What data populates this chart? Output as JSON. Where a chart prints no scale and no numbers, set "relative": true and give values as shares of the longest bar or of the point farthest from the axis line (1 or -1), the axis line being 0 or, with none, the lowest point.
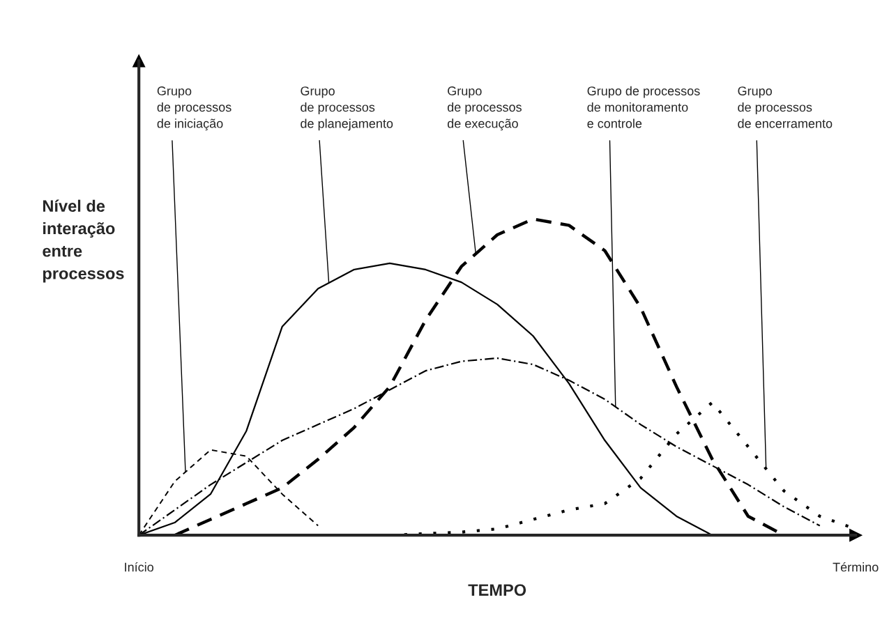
{
  "chart_data": {
    "type": "line",
    "relative": true,
    "xlabel": "TEMPO",
    "ylabel": "Nível de\ninteração\nentre\nprocessos",
    "categories": [
      "Início",
      null,
      null,
      null,
      null,
      null,
      null,
      null,
      null,
      null,
      null,
      null,
      null,
      null,
      null,
      null,
      null,
      null,
      null,
      null,
      "Término"
    ],
    "tick_labels": "x",
    "grid": false,
    "legend": false,
    "marker": "none",
    "series": [
      {
        "color": "#000000",
        "line_style": "dashed",
        "values": [
          0,
          0.17,
          0.27,
          0.25,
          0.13,
          0.03,
          null,
          null,
          null,
          null,
          null,
          null,
          null,
          null,
          null,
          null,
          null,
          null,
          null,
          null,
          null
        ]
      },
      {
        "color": "#000000",
        "line_style": "solid",
        "values": [
          0,
          0.04,
          0.13,
          0.33,
          0.66,
          0.78,
          0.84,
          0.86,
          0.84,
          0.8,
          0.73,
          0.63,
          0.48,
          0.3,
          0.15,
          0.06,
          0,
          null,
          null,
          null,
          null
        ]
      },
      {
        "color": "#000000",
        "line_style": "longdashed",
        "values": [
          null,
          0,
          0.05,
          0.1,
          0.15,
          0.24,
          0.34,
          0.47,
          0.68,
          0.85,
          0.95,
          1,
          0.98,
          0.9,
          0.72,
          0.47,
          0.24,
          0.06,
          0,
          null,
          null
        ]
      },
      {
        "color": "#000000",
        "line_style": "dashdot",
        "values": [
          0,
          0.08,
          0.16,
          0.23,
          0.3,
          0.35,
          0.4,
          0.46,
          0.52,
          0.55,
          0.56,
          0.54,
          0.49,
          0.43,
          0.35,
          0.28,
          0.22,
          0.16,
          0.09,
          0.03,
          null
        ]
      },
      {
        "color": "#000000",
        "line_style": "dotted",
        "values": [
          null,
          null,
          null,
          null,
          null,
          null,
          null,
          0,
          0.005,
          0.01,
          0.02,
          0.05,
          0.08,
          0.1,
          0.18,
          0.32,
          0.42,
          0.28,
          0.14,
          0.06,
          0.02
        ]
      }
    ],
    "annotations": [
      "Grupo\nde processos\nde iniciação",
      "Grupo\nde processos\nde planejamento",
      "Grupo\nde processos\nde execução",
      "Grupo de processos\nde monitoramento\ne controle",
      "Grupo\nde processos\nde encerramento"
    ]
  }
}
